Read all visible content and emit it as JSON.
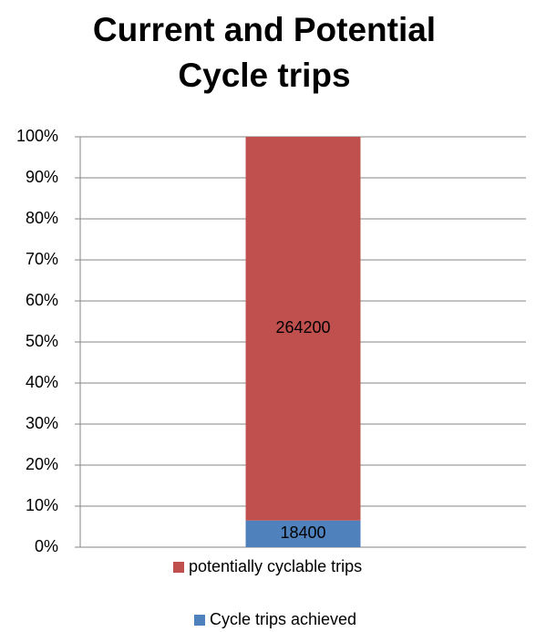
{
  "chart_data": {
    "type": "bar",
    "stacking": "percent",
    "title": "Current and Potential Cycle trips",
    "categories": [
      null
    ],
    "series": [
      {
        "name": "Cycle trips achieved",
        "color": "#4f81bd",
        "values": [
          18400
        ]
      },
      {
        "name": "potentially cyclable trips",
        "color": "#c0504d",
        "values": [
          264200
        ]
      }
    ],
    "ylim": [
      0,
      100
    ],
    "yticks": [
      {
        "value": 0,
        "label": "0%"
      },
      {
        "value": 10,
        "label": "10%"
      },
      {
        "value": 20,
        "label": "20%"
      },
      {
        "value": 30,
        "label": "30%"
      },
      {
        "value": 40,
        "label": "40%"
      },
      {
        "value": 50,
        "label": "50%"
      },
      {
        "value": 60,
        "label": "60%"
      },
      {
        "value": 70,
        "label": "70%"
      },
      {
        "value": 80,
        "label": "80%"
      },
      {
        "value": 90,
        "label": "90%"
      },
      {
        "value": 100,
        "label": "100%"
      }
    ],
    "grid": true,
    "legend": "bottom"
  }
}
